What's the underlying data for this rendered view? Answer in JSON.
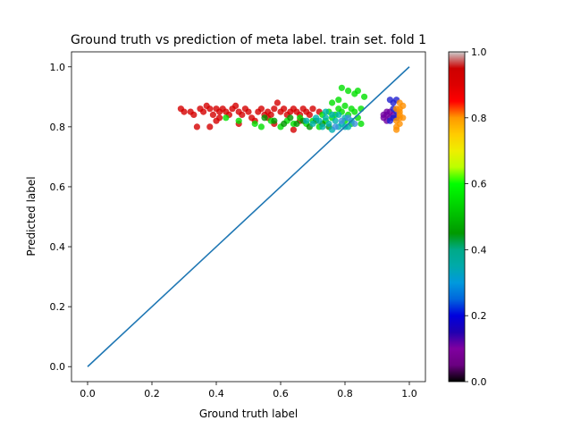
{
  "chart_data": {
    "type": "scatter",
    "title": "Ground truth vs prediction of meta label. train set. fold 1",
    "xlabel": "Ground truth label",
    "ylabel": "Predicted label",
    "xlim": [
      -0.05,
      1.05
    ],
    "ylim": [
      -0.05,
      1.05
    ],
    "xticks": [
      "0.0",
      "0.2",
      "0.4",
      "0.6",
      "0.8",
      "1.0"
    ],
    "yticks": [
      "0.0",
      "0.2",
      "0.4",
      "0.6",
      "0.8",
      "1.0"
    ],
    "grid": false,
    "colorbar": {
      "colormap": "nipy_spectral",
      "range": [
        0.0,
        1.0
      ],
      "ticks": [
        "0.0",
        "0.2",
        "0.4",
        "0.6",
        "0.8",
        "1.0"
      ]
    },
    "reference_line": {
      "x": [
        0.0,
        1.0
      ],
      "y": [
        0.0,
        1.0
      ],
      "color": "#1f77b4"
    },
    "series": [
      {
        "color": "#d40000",
        "points": [
          [
            0.29,
            0.86
          ],
          [
            0.3,
            0.85
          ],
          [
            0.32,
            0.85
          ],
          [
            0.33,
            0.84
          ],
          [
            0.35,
            0.86
          ],
          [
            0.36,
            0.85
          ],
          [
            0.37,
            0.87
          ],
          [
            0.38,
            0.86
          ],
          [
            0.39,
            0.84
          ],
          [
            0.4,
            0.86
          ],
          [
            0.41,
            0.85
          ],
          [
            0.42,
            0.86
          ],
          [
            0.43,
            0.85
          ],
          [
            0.44,
            0.84
          ],
          [
            0.45,
            0.86
          ],
          [
            0.46,
            0.87
          ],
          [
            0.47,
            0.85
          ],
          [
            0.48,
            0.84
          ],
          [
            0.49,
            0.86
          ],
          [
            0.5,
            0.85
          ],
          [
            0.51,
            0.83
          ],
          [
            0.53,
            0.85
          ],
          [
            0.54,
            0.86
          ],
          [
            0.55,
            0.84
          ],
          [
            0.56,
            0.85
          ],
          [
            0.57,
            0.84
          ],
          [
            0.58,
            0.86
          ],
          [
            0.59,
            0.88
          ],
          [
            0.6,
            0.85
          ],
          [
            0.61,
            0.86
          ],
          [
            0.62,
            0.84
          ],
          [
            0.63,
            0.85
          ],
          [
            0.64,
            0.86
          ],
          [
            0.65,
            0.85
          ],
          [
            0.66,
            0.84
          ],
          [
            0.67,
            0.86
          ],
          [
            0.68,
            0.85
          ],
          [
            0.69,
            0.84
          ],
          [
            0.7,
            0.86
          ],
          [
            0.72,
            0.85
          ],
          [
            0.34,
            0.8
          ],
          [
            0.38,
            0.8
          ],
          [
            0.4,
            0.82
          ],
          [
            0.47,
            0.81
          ],
          [
            0.52,
            0.82
          ],
          [
            0.58,
            0.81
          ],
          [
            0.64,
            0.79
          ],
          [
            0.41,
            0.83
          ],
          [
            0.56,
            0.83
          ],
          [
            0.66,
            0.82
          ]
        ]
      },
      {
        "color": "#00e000",
        "points": [
          [
            0.43,
            0.83
          ],
          [
            0.47,
            0.82
          ],
          [
            0.52,
            0.81
          ],
          [
            0.54,
            0.8
          ],
          [
            0.57,
            0.82
          ],
          [
            0.6,
            0.8
          ],
          [
            0.62,
            0.82
          ],
          [
            0.64,
            0.81
          ],
          [
            0.66,
            0.83
          ],
          [
            0.68,
            0.81
          ],
          [
            0.7,
            0.82
          ],
          [
            0.72,
            0.8
          ],
          [
            0.73,
            0.84
          ],
          [
            0.74,
            0.82
          ],
          [
            0.75,
            0.85
          ],
          [
            0.76,
            0.83
          ],
          [
            0.77,
            0.84
          ],
          [
            0.78,
            0.86
          ],
          [
            0.79,
            0.85
          ],
          [
            0.8,
            0.87
          ],
          [
            0.81,
            0.84
          ],
          [
            0.82,
            0.86
          ],
          [
            0.83,
            0.85
          ],
          [
            0.84,
            0.83
          ],
          [
            0.85,
            0.86
          ],
          [
            0.86,
            0.9
          ],
          [
            0.79,
            0.93
          ],
          [
            0.81,
            0.92
          ],
          [
            0.83,
            0.91
          ],
          [
            0.84,
            0.92
          ],
          [
            0.76,
            0.88
          ],
          [
            0.78,
            0.89
          ],
          [
            0.8,
            0.82
          ],
          [
            0.82,
            0.81
          ],
          [
            0.85,
            0.81
          ]
        ]
      },
      {
        "color": "#009600",
        "points": [
          [
            0.55,
            0.83
          ],
          [
            0.58,
            0.82
          ],
          [
            0.61,
            0.81
          ],
          [
            0.63,
            0.83
          ],
          [
            0.65,
            0.81
          ],
          [
            0.67,
            0.82
          ],
          [
            0.69,
            0.8
          ],
          [
            0.71,
            0.82
          ],
          [
            0.73,
            0.81
          ],
          [
            0.75,
            0.8
          ]
        ]
      },
      {
        "color": "#00b0b0",
        "points": [
          [
            0.68,
            0.82
          ],
          [
            0.7,
            0.81
          ],
          [
            0.71,
            0.83
          ],
          [
            0.72,
            0.82
          ],
          [
            0.73,
            0.8
          ],
          [
            0.74,
            0.83
          ],
          [
            0.75,
            0.81
          ],
          [
            0.76,
            0.79
          ],
          [
            0.77,
            0.82
          ],
          [
            0.78,
            0.8
          ],
          [
            0.79,
            0.81
          ],
          [
            0.8,
            0.83
          ],
          [
            0.81,
            0.8
          ],
          [
            0.82,
            0.82
          ],
          [
            0.76,
            0.84
          ],
          [
            0.74,
            0.85
          ],
          [
            0.78,
            0.84
          ],
          [
            0.8,
            0.8
          ]
        ]
      },
      {
        "color": "#4090e0",
        "points": [
          [
            0.77,
            0.8
          ],
          [
            0.79,
            0.82
          ],
          [
            0.81,
            0.83
          ],
          [
            0.83,
            0.81
          ]
        ]
      },
      {
        "color": "#7000a0",
        "points": [
          [
            0.92,
            0.83
          ],
          [
            0.93,
            0.84
          ],
          [
            0.93,
            0.82
          ],
          [
            0.94,
            0.83
          ],
          [
            0.94,
            0.85
          ],
          [
            0.92,
            0.84
          ],
          [
            0.95,
            0.84
          ],
          [
            0.93,
            0.85
          ]
        ]
      },
      {
        "color": "#2020d0",
        "points": [
          [
            0.94,
            0.82
          ],
          [
            0.95,
            0.86
          ],
          [
            0.95,
            0.88
          ],
          [
            0.96,
            0.85
          ],
          [
            0.96,
            0.89
          ],
          [
            0.94,
            0.89
          ],
          [
            0.95,
            0.83
          ],
          [
            0.96,
            0.83
          ]
        ]
      },
      {
        "color": "#ff9000",
        "points": [
          [
            0.96,
            0.8
          ],
          [
            0.96,
            0.82
          ],
          [
            0.97,
            0.81
          ],
          [
            0.97,
            0.83
          ],
          [
            0.97,
            0.84
          ],
          [
            0.97,
            0.85
          ],
          [
            0.97,
            0.86
          ],
          [
            0.98,
            0.83
          ],
          [
            0.98,
            0.87
          ],
          [
            0.96,
            0.86
          ],
          [
            0.97,
            0.88
          ],
          [
            0.96,
            0.79
          ]
        ]
      }
    ]
  }
}
